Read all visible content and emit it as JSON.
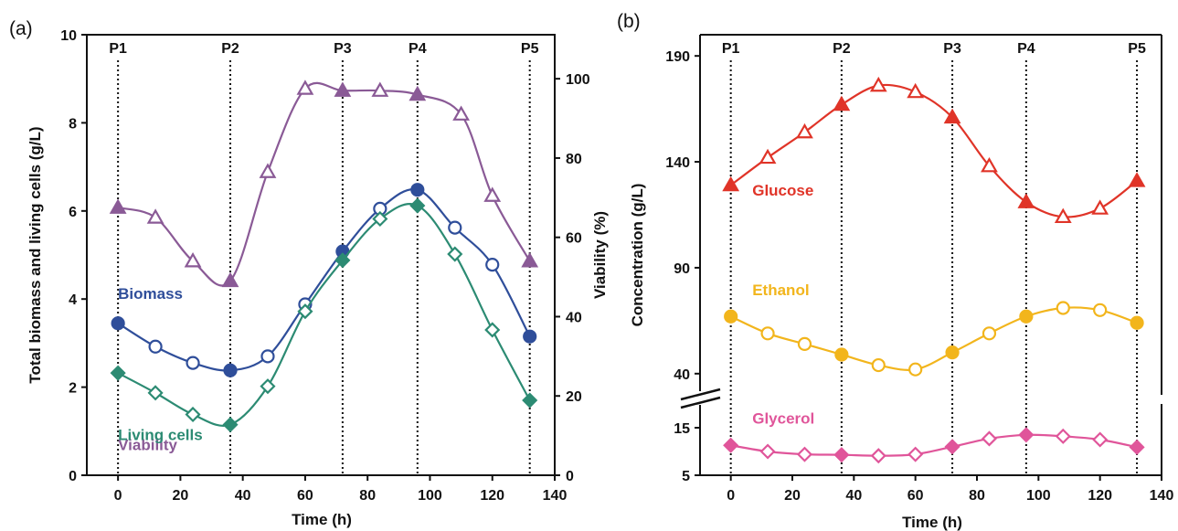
{
  "panels": [
    {
      "label": "(a)",
      "chart_data": {
        "type": "line",
        "xlabel": "Time (h)",
        "ylabel": "Total biomass and living cells (g/L)",
        "y2label": "Viability (%)",
        "xlim": [
          -10,
          140
        ],
        "ylim": [
          0,
          10
        ],
        "y2lim": [
          0,
          111.1
        ],
        "xticks": [
          0,
          20,
          40,
          60,
          80,
          100,
          120,
          140
        ],
        "yticks": [
          0,
          2,
          4,
          6,
          8,
          10
        ],
        "y2ticks": [
          0,
          20,
          40,
          60,
          80,
          100
        ],
        "phase_lines": [
          {
            "label": "P1",
            "x": 0
          },
          {
            "label": "P2",
            "x": 36
          },
          {
            "label": "P3",
            "x": 72
          },
          {
            "label": "P4",
            "x": 96
          },
          {
            "label": "P5",
            "x": 132
          }
        ],
        "series": [
          {
            "name": "Viability",
            "axis": "right",
            "color": "#8a5a96",
            "marker": "triangle",
            "x": [
              0,
              12,
              24,
              36,
              48,
              60,
              72,
              84,
              96,
              110,
              120,
              132
            ],
            "y": [
              67.5,
              65,
              54,
              49,
              76.5,
              97.5,
              97,
              97,
              96,
              91,
              70.5,
              54
            ],
            "filled": [
              true,
              false,
              false,
              true,
              false,
              false,
              true,
              false,
              true,
              false,
              false,
              true
            ],
            "label_pos": [
              0,
              6.3
            ]
          },
          {
            "name": "Biomass",
            "axis": "left",
            "color": "#2f4e9a",
            "marker": "circle",
            "x": [
              0,
              12,
              24,
              36,
              48,
              60,
              72,
              84,
              96,
              108,
              120,
              132
            ],
            "y": [
              3.45,
              2.92,
              2.55,
              2.38,
              2.7,
              3.88,
              5.08,
              6.05,
              6.48,
              5.62,
              4.78,
              3.15
            ],
            "filled": [
              true,
              false,
              false,
              true,
              false,
              false,
              true,
              false,
              true,
              false,
              false,
              true
            ],
            "label_pos": [
              0,
              4.0
            ]
          },
          {
            "name": "Living cells",
            "axis": "left",
            "color": "#2c8b73",
            "marker": "diamond",
            "x": [
              0,
              12,
              24,
              36,
              48,
              60,
              72,
              84,
              96,
              108,
              120,
              132
            ],
            "y": [
              2.32,
              1.87,
              1.38,
              1.15,
              2.02,
              3.72,
              4.88,
              5.82,
              6.12,
              5.02,
              3.3,
              1.7
            ],
            "filled": [
              true,
              false,
              false,
              true,
              false,
              false,
              true,
              false,
              true,
              false,
              false,
              true
            ],
            "label_pos": [
              0,
              0.8
            ]
          }
        ]
      }
    },
    {
      "label": "(b)",
      "chart_data": {
        "type": "line",
        "xlabel": "Time (h)",
        "ylabel": "Concentration (g/L)",
        "xlim": [
          -10,
          140
        ],
        "y_broken_axis": {
          "upper": [
            30,
            200
          ],
          "lower": [
            5,
            20
          ],
          "break_between": [
            20,
            30
          ]
        },
        "xticks": [
          0,
          20,
          40,
          60,
          80,
          100,
          120,
          140
        ],
        "yticks_upper": [
          40,
          90,
          140,
          190
        ],
        "yticks_lower": [
          5,
          15
        ],
        "phase_lines": [
          {
            "label": "P1",
            "x": 0
          },
          {
            "label": "P2",
            "x": 36
          },
          {
            "label": "P3",
            "x": 72
          },
          {
            "label": "P4",
            "x": 96
          },
          {
            "label": "P5",
            "x": 132
          }
        ],
        "series": [
          {
            "name": "Glucose",
            "segment": "upper",
            "color": "#e03428",
            "marker": "triangle",
            "x": [
              0,
              12,
              24,
              36,
              48,
              60,
              72,
              84,
              96,
              108,
              120,
              132
            ],
            "y": [
              129,
              142,
              154,
              167,
              176,
              173,
              161,
              138,
              121,
              114,
              118,
              131
            ],
            "filled": [
              true,
              false,
              false,
              true,
              false,
              false,
              true,
              false,
              true,
              false,
              false,
              true
            ],
            "label_pos": [
              7,
              124
            ]
          },
          {
            "name": "Ethanol",
            "segment": "upper",
            "color": "#f2b51c",
            "marker": "circle",
            "x": [
              0,
              12,
              24,
              36,
              48,
              60,
              72,
              84,
              96,
              108,
              120,
              132
            ],
            "y": [
              67,
              59,
              54,
              49,
              44,
              42,
              50,
              59,
              67,
              71,
              70,
              64
            ],
            "filled": [
              true,
              false,
              false,
              true,
              false,
              false,
              true,
              false,
              true,
              false,
              false,
              true
            ],
            "label_pos": [
              7,
              77
            ]
          },
          {
            "name": "Glycerol",
            "segment": "lower",
            "color": "#e0559a",
            "marker": "diamond",
            "x": [
              0,
              12,
              24,
              36,
              48,
              60,
              72,
              84,
              96,
              108,
              120,
              132
            ],
            "y": [
              11.3,
              10.0,
              9.4,
              9.3,
              9.1,
              9.4,
              11.0,
              12.7,
              13.5,
              13.2,
              12.5,
              10.9
            ],
            "filled": [
              true,
              false,
              false,
              true,
              false,
              false,
              true,
              false,
              true,
              false,
              false,
              true
            ],
            "label_pos": [
              7,
              15.9
            ]
          }
        ]
      }
    }
  ]
}
